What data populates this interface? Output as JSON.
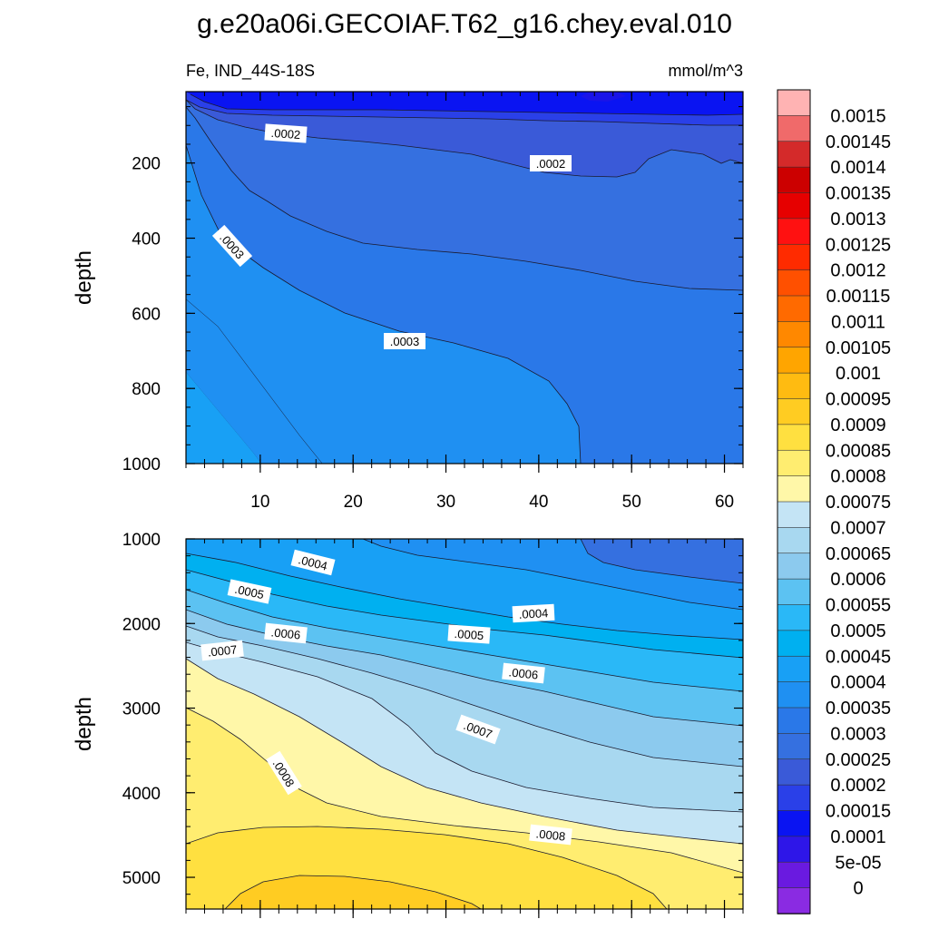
{
  "chart_data": {
    "type": "contour",
    "title": "g.e20a06i.GECOIAF.T62_g16.chey.eval.010",
    "variable_label": "Fe, IND_44S-18S",
    "units_label": "mmol/m^3",
    "colorbar": {
      "levels": [
        "0.0015",
        "0.00145",
        "0.0014",
        "0.00135",
        "0.0013",
        "0.00125",
        "0.0012",
        "0.00115",
        "0.0011",
        "0.00105",
        "0.001",
        "0.00095",
        "0.0009",
        "0.00085",
        "0.0008",
        "0.00075",
        "0.0007",
        "0.00065",
        "0.0006",
        "0.00055",
        "0.0005",
        "0.00045",
        "0.0004",
        "0.00035",
        "0.0003",
        "0.00025",
        "0.0002",
        "0.00015",
        "0.0001",
        "5e-05",
        "0"
      ],
      "colors": [
        "#ffb3b3",
        "#f06a6a",
        "#d42a2a",
        "#cc0000",
        "#e60000",
        "#ff1111",
        "#ff2b00",
        "#ff5000",
        "#ff6a00",
        "#ff8800",
        "#ffa500",
        "#ffbb11",
        "#ffcc22",
        "#ffe040",
        "#ffed70",
        "#fff7a8",
        "#c4e4f5",
        "#a8d8f0",
        "#8ccaee",
        "#5cc2f2",
        "#2ab8f7",
        "#00b0f0",
        "#18a0f5",
        "#1f90f2",
        "#2a78e8",
        "#3570e0",
        "#3a5ad8",
        "#2a40e8",
        "#0a14f2",
        "#2e16e8",
        "#6a1ae0",
        "#8a2be2"
      ]
    },
    "panels": [
      {
        "name": "upper",
        "x_ticks": [
          "10",
          "20",
          "30",
          "40",
          "50",
          "60"
        ],
        "x_range": [
          2,
          62
        ],
        "y_label": "depth",
        "y_ticks": [
          "200",
          "400",
          "600",
          "800",
          "1000"
        ],
        "y_range": [
          10,
          1000
        ],
        "contour_labels": [
          ".0002",
          ".0002",
          ".0003",
          ".0003"
        ]
      },
      {
        "name": "lower",
        "x_ticks": [
          "10",
          "20",
          "30",
          "40",
          "50",
          "60"
        ],
        "x_range": [
          2,
          62
        ],
        "y_label": "depth",
        "y_ticks": [
          "1000",
          "2000",
          "3000",
          "4000",
          "5000"
        ],
        "y_range": [
          1000,
          5375
        ],
        "contour_labels": [
          ".0004",
          ".0005",
          ".0004",
          ".0006",
          ".0005",
          ".0007",
          ".0006",
          ".0007",
          ".0008",
          ".0008"
        ]
      }
    ]
  }
}
